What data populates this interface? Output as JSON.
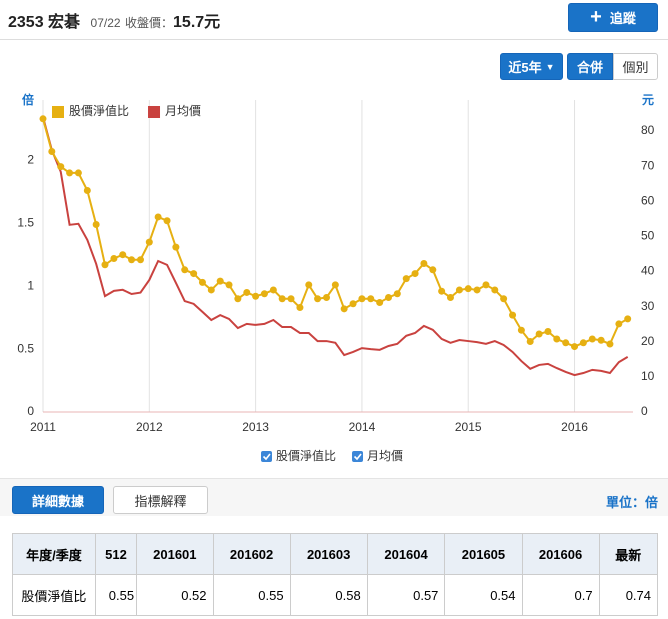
{
  "header": {
    "code": "2353",
    "name": "宏碁",
    "date": "07/22",
    "close_label": "收盤價：",
    "close_value": "15.7元",
    "follow": "追蹤"
  },
  "controls": {
    "range": "近5年",
    "consolidated": "合併",
    "individual": "個別"
  },
  "chart_data": {
    "type": "line",
    "y_label": "倍",
    "y2_label": "元",
    "x": [
      2011,
      2011.083,
      2011.167,
      2011.25,
      2011.333,
      2011.417,
      2011.5,
      2011.583,
      2011.667,
      2011.75,
      2011.833,
      2011.917,
      2012,
      2012.083,
      2012.167,
      2012.25,
      2012.333,
      2012.417,
      2012.5,
      2012.583,
      2012.667,
      2012.75,
      2012.833,
      2012.917,
      2013,
      2013.083,
      2013.167,
      2013.25,
      2013.333,
      2013.417,
      2013.5,
      2013.583,
      2013.667,
      2013.75,
      2013.833,
      2013.917,
      2014,
      2014.083,
      2014.167,
      2014.25,
      2014.333,
      2014.417,
      2014.5,
      2014.583,
      2014.667,
      2014.75,
      2014.833,
      2014.917,
      2015,
      2015.083,
      2015.167,
      2015.25,
      2015.333,
      2015.417,
      2015.5,
      2015.583,
      2015.667,
      2015.75,
      2015.833,
      2015.917,
      2016,
      2016.083,
      2016.167,
      2016.25,
      2016.333,
      2016.417,
      2016.5
    ],
    "xlim": [
      2011,
      2016.55
    ],
    "xticks": [
      2011,
      2012,
      2013,
      2014,
      2015,
      2016
    ],
    "xgrid": true,
    "ylim": [
      0,
      2.4
    ],
    "yticks": [
      0,
      0.5,
      1,
      1.5,
      2
    ],
    "y2lim": [
      0,
      86
    ],
    "y2ticks": [
      0,
      10,
      20,
      30,
      40,
      50,
      60,
      70,
      80
    ],
    "series": [
      {
        "name": "股價淨值比",
        "color": "#e6b012",
        "markers": true,
        "values": [
          2.33,
          2.07,
          1.95,
          1.9,
          1.9,
          1.76,
          1.49,
          1.17,
          1.22,
          1.25,
          1.21,
          1.21,
          1.35,
          1.55,
          1.52,
          1.31,
          1.13,
          1.1,
          1.03,
          0.97,
          1.04,
          1.01,
          0.9,
          0.95,
          0.92,
          0.94,
          0.97,
          0.9,
          0.9,
          0.83,
          1.01,
          0.9,
          0.91,
          1.01,
          0.82,
          0.86,
          0.9,
          0.9,
          0.87,
          0.91,
          0.94,
          1.06,
          1.1,
          1.18,
          1.13,
          0.96,
          0.91,
          0.97,
          0.98,
          0.97,
          1.01,
          0.97,
          0.9,
          0.77,
          0.65,
          0.56,
          0.62,
          0.64,
          0.58,
          0.55,
          0.52,
          0.55,
          0.58,
          0.57,
          0.54,
          0.7,
          0.74
        ]
      },
      {
        "name": "月均價",
        "color": "#c9423f",
        "markers": false,
        "axis": "y2",
        "values": [
          84,
          74.6,
          68.4,
          53.3,
          53.6,
          49,
          42.2,
          33,
          34.5,
          34.8,
          33.6,
          34,
          37.6,
          43,
          41.9,
          36.8,
          31.6,
          30.8,
          28.5,
          26.2,
          27.6,
          26.5,
          23.9,
          25.1,
          24.8,
          25.1,
          26.2,
          24.2,
          24.2,
          22.5,
          22.5,
          20.2,
          20.2,
          19.7,
          16.2,
          17.1,
          18.2,
          17.9,
          17.7,
          18.8,
          19.4,
          21.7,
          22.5,
          24.5,
          23.4,
          20.8,
          19.7,
          20.5,
          20.2,
          19.9,
          19.4,
          20.2,
          19.1,
          17.1,
          14.5,
          12.3,
          13.4,
          13.7,
          12.5,
          11.4,
          10.5,
          11.1,
          12,
          11.7,
          11.1,
          14.2,
          15.7
        ]
      }
    ]
  },
  "tabs": {
    "detail": "詳細數據",
    "explain": "指標解釋",
    "unit": "單位：倍"
  },
  "table": {
    "header": [
      "年度/季度",
      "512",
      "201601",
      "201602",
      "201603",
      "201604",
      "201605",
      "201606",
      "最新"
    ],
    "rows": [
      [
        "股價淨值比",
        "0.55",
        "0.52",
        "0.55",
        "0.58",
        "0.57",
        "0.54",
        "0.7",
        "0.74"
      ]
    ]
  }
}
